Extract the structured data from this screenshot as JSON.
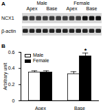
{
  "blot": {
    "panel_label": "A",
    "groups": [
      "Male",
      "Female"
    ],
    "lanes": [
      "Apex",
      "Base",
      "Apex",
      "Base"
    ],
    "rows": [
      "NCX1",
      "β-actin"
    ]
  },
  "chart_data": {
    "panel_label": "B",
    "type": "bar",
    "categories": [
      "Apex",
      "Base"
    ],
    "series": [
      {
        "name": "Male",
        "color": "#ffffff",
        "values": [
          0.35,
          0.33
        ],
        "errors": [
          0.02,
          0.03
        ]
      },
      {
        "name": "Female",
        "color": "#000000",
        "values": [
          0.35,
          0.55
        ],
        "errors": [
          0.02,
          0.04
        ]
      }
    ],
    "ylabel": "Arbitrary unit",
    "ylim": [
      0,
      0.6
    ],
    "yticks": [
      0,
      0.2,
      0.4,
      0.6
    ],
    "legend": "top-left",
    "annotations": [
      {
        "text": "*",
        "category": "Base",
        "series": "Female"
      }
    ]
  }
}
